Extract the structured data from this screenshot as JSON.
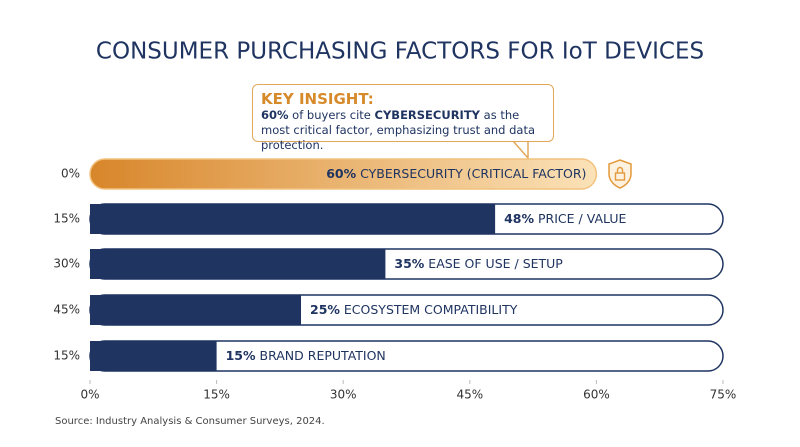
{
  "chart_data": {
    "type": "hbar",
    "title": "CONSUMER PURCHASING FACTORS FOR IoT DEVICES",
    "categories": [
      "0%",
      "15%",
      "30%",
      "45%",
      "15%"
    ],
    "labels": [
      "CYBERSECURITY (CRITICAL FACTOR)",
      "PRICE / VALUE",
      "EASE OF USE / SETUP",
      "ECOSYSTEM COMPATIBILITY",
      "BRAND REPUTATION"
    ],
    "values": [
      60,
      48,
      35,
      25,
      15
    ],
    "value_labels": [
      "60%",
      "48%",
      "35%",
      "25%",
      "15%"
    ],
    "colors": [
      "#e29a3c",
      "#1f3461",
      "#1f3461",
      "#1f3461",
      "#1f3461"
    ],
    "xlim": [
      0,
      75
    ],
    "xticks": [
      {
        "value": 0,
        "label": "0%"
      },
      {
        "value": 15,
        "label": "15%"
      },
      {
        "value": 30,
        "label": "30%"
      },
      {
        "value": 45,
        "label": "45%"
      },
      {
        "value": 60,
        "label": "60%"
      },
      {
        "value": 75,
        "label": "75%"
      }
    ],
    "annotation": {
      "heading": "KEY INSIGHT:",
      "parts": [
        "60%",
        " of buyers cite ",
        "CYBERSECURITY",
        " as the most critical factor, emphasizing trust and data protection."
      ]
    },
    "source": "Source: Industry Analysis & Consumer Surveys, 2024."
  }
}
